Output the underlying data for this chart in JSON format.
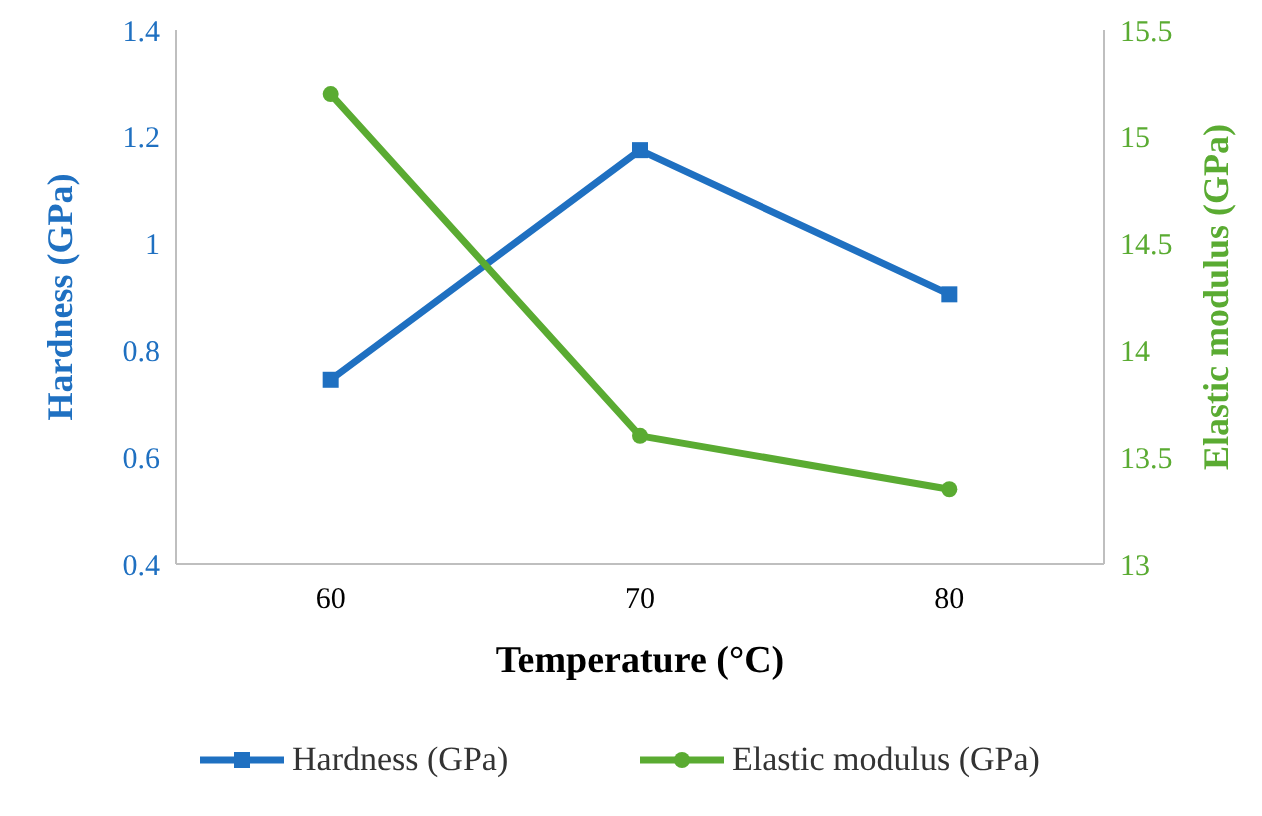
{
  "chart_data": {
    "type": "line",
    "xlabel": "Temperature (°C)",
    "ylabel": "Hardness (GPa)",
    "y2label": "Elastic modulus (GPa)",
    "categories": [
      "60",
      "70",
      "80"
    ],
    "series": [
      {
        "name": "Hardness (GPa)",
        "color": "#1f70c1",
        "values": [
          0.745,
          1.175,
          0.905
        ],
        "marker": "square"
      },
      {
        "name": "Elastic modulus (GPa)",
        "color": "#5aab32",
        "values": [
          15.2,
          13.6,
          13.35
        ],
        "marker": "circle",
        "axis": "y2"
      }
    ],
    "ylim": [
      0.4,
      1.4
    ],
    "yticks": [
      0.4,
      0.6,
      0.8,
      1,
      1.2,
      1.4
    ],
    "y2lim": [
      13,
      15.5
    ],
    "y2ticks": [
      13,
      13.5,
      14,
      14.5,
      15,
      15.5
    ],
    "grid": false,
    "legend": "bottom",
    "line_style": "solid"
  }
}
